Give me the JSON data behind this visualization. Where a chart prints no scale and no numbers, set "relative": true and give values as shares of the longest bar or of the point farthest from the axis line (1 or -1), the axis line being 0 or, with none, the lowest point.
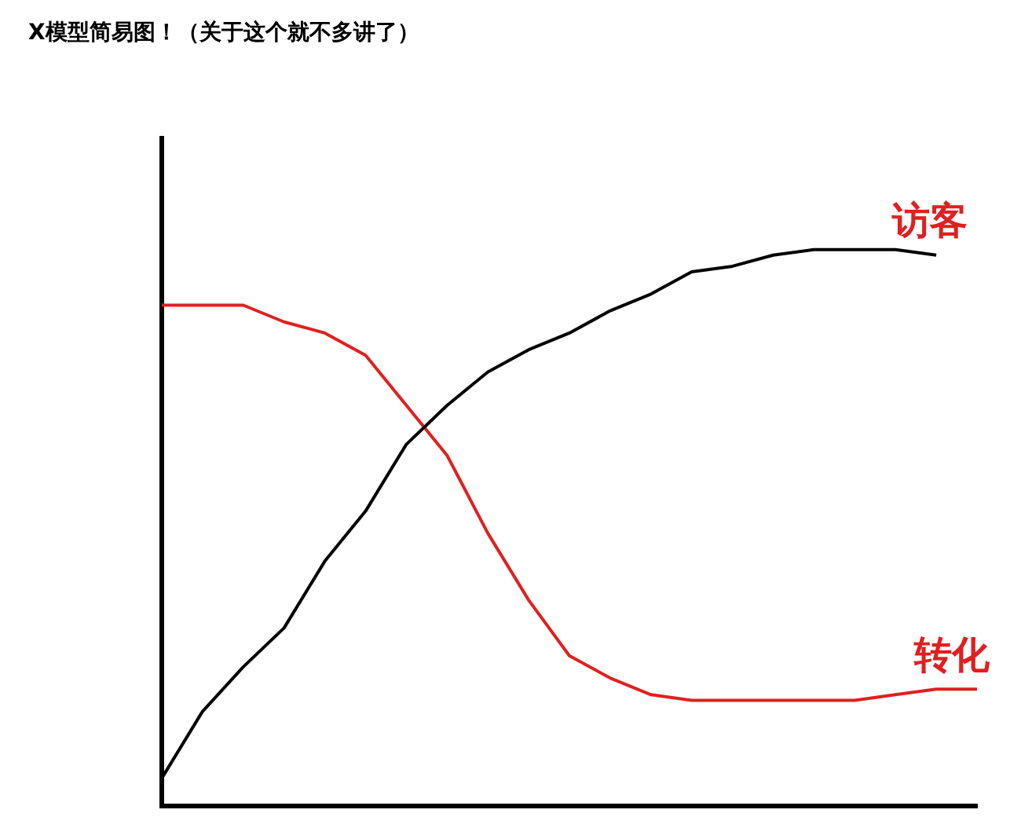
{
  "chart_data": {
    "type": "line",
    "title": "X模型简易图！（关于这个就不多讲了）",
    "relative": true,
    "legend": false,
    "grid": false,
    "marker": "none",
    "categories": [
      null,
      null,
      null,
      null,
      null,
      null,
      null,
      null,
      null,
      null,
      null,
      null,
      null,
      null,
      null,
      null,
      null,
      null,
      null,
      null,
      null
    ],
    "series": [
      {
        "name": "访客",
        "color": "#000000",
        "values": [
          0.05,
          0.17,
          0.25,
          0.32,
          0.44,
          0.53,
          0.65,
          0.72,
          0.78,
          0.82,
          0.85,
          0.89,
          0.92,
          0.96,
          0.97,
          0.99,
          1,
          1,
          1,
          0.99,
          null
        ]
      },
      {
        "name": "转化",
        "color": "#e02020",
        "values": [
          0.9,
          0.9,
          0.9,
          0.87,
          0.85,
          0.81,
          0.72,
          0.63,
          0.49,
          0.37,
          0.27,
          0.23,
          0.2,
          0.19,
          0.19,
          0.19,
          0.19,
          0.19,
          0.2,
          0.21,
          0.21
        ]
      }
    ]
  }
}
